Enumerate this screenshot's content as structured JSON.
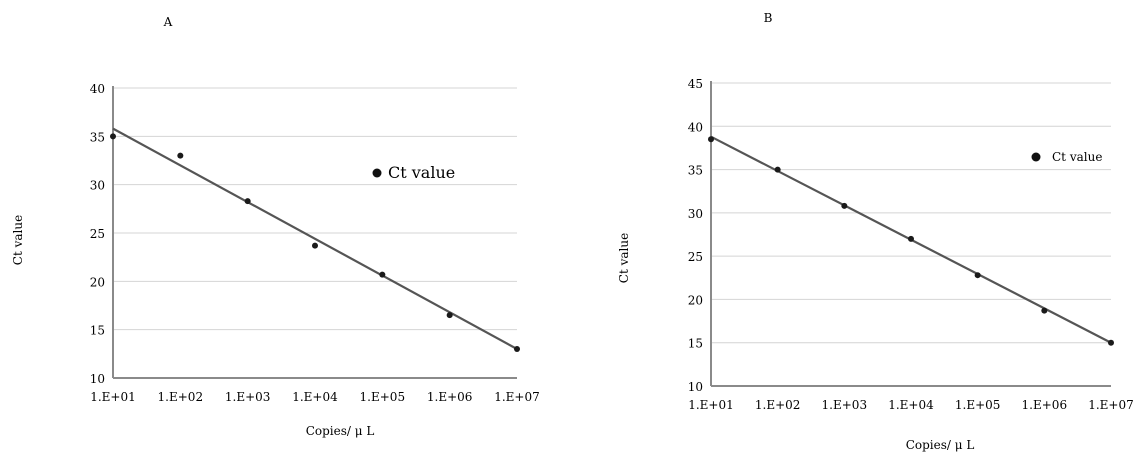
{
  "chart_data": [
    {
      "panel_label": "A",
      "type": "scatter",
      "xlabel": "Copies/ μ L",
      "ylabel": "Ct value",
      "x_tick_labels": [
        "1.E+01",
        "1.E+02",
        "1.E+03",
        "1.E+04",
        "1.E+05",
        "1.E+06",
        "1.E+07"
      ],
      "y_ticks": [
        10,
        15,
        20,
        25,
        30,
        35,
        40
      ],
      "ylim": [
        10,
        40
      ],
      "x_log_exponent_range": [
        1,
        7
      ],
      "grid": true,
      "legend": {
        "placement": "right",
        "entries": [
          "Ct value"
        ]
      },
      "series": [
        {
          "name": "Ct value",
          "x_log_exponent": [
            1,
            2,
            3,
            4,
            5,
            6,
            7
          ],
          "y": [
            35.0,
            33.0,
            28.3,
            23.7,
            20.7,
            16.5,
            13.0
          ]
        }
      ],
      "trendline": {
        "x_log_exponent": [
          1,
          7
        ],
        "y": [
          35.8,
          13.0
        ]
      }
    },
    {
      "panel_label": "B",
      "type": "scatter",
      "xlabel": "Copies/ μ L",
      "ylabel": "Ct value",
      "x_tick_labels": [
        "1.E+01",
        "1.E+02",
        "1.E+03",
        "1.E+04",
        "1.E+05",
        "1.E+06",
        "1.E+07"
      ],
      "y_ticks": [
        10,
        15,
        20,
        25,
        30,
        35,
        40,
        45
      ],
      "ylim": [
        10,
        45
      ],
      "x_log_exponent_range": [
        1,
        7
      ],
      "grid": true,
      "legend": {
        "placement": "top-right",
        "entries": [
          "Ct value"
        ]
      },
      "series": [
        {
          "name": "Ct value",
          "x_log_exponent": [
            1,
            2,
            3,
            4,
            5,
            6,
            7
          ],
          "y": [
            38.5,
            35.0,
            30.8,
            27.0,
            22.8,
            18.7,
            15.0
          ]
        }
      ],
      "trendline": {
        "x_log_exponent": [
          1,
          7
        ],
        "y": [
          38.8,
          15.0
        ]
      }
    }
  ]
}
